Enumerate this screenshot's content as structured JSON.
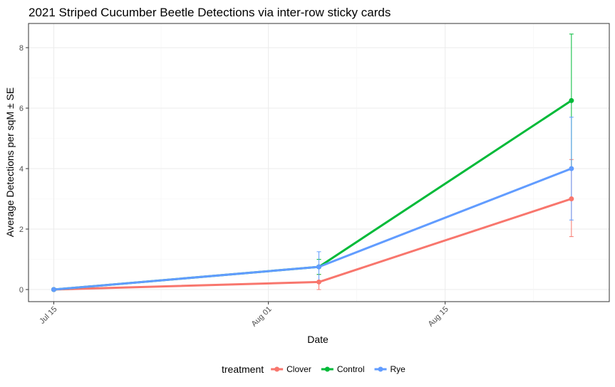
{
  "chart_data": {
    "type": "line",
    "title": "2021 Striped Cucumber Beetle Detections via inter-row sticky cards",
    "xlabel": "Date",
    "ylabel": "Average Detections per sqM ± SE",
    "x_ticks": [
      "Jul 15",
      "Aug 01",
      "Aug 15"
    ],
    "x_tick_dates": [
      "2021-07-15",
      "2021-08-01",
      "2021-08-15"
    ],
    "y_ticks": [
      0,
      2,
      4,
      6,
      8
    ],
    "xlim": [
      "2021-07-13",
      "2021-08-28"
    ],
    "ylim": [
      -0.4,
      8.8
    ],
    "grid": true,
    "legend": {
      "title": "treatment",
      "position": "bottom"
    },
    "x": [
      "2021-07-15",
      "2021-08-05",
      "2021-08-25"
    ],
    "series": [
      {
        "name": "Clover",
        "color": "#F8766D",
        "values": [
          0,
          0.25,
          3.0
        ],
        "err_low": [
          0,
          0.0,
          1.75
        ],
        "err_high": [
          0,
          0.5,
          4.3
        ]
      },
      {
        "name": "Control",
        "color": "#00BA38",
        "values": [
          0,
          0.75,
          6.25
        ],
        "err_low": [
          0,
          0.5,
          4.0
        ],
        "err_high": [
          0,
          1.0,
          8.45
        ]
      },
      {
        "name": "Rye",
        "color": "#619CFF",
        "values": [
          0,
          0.75,
          4.0
        ],
        "err_low": [
          0,
          0.25,
          2.3
        ],
        "err_high": [
          0,
          1.25,
          5.7
        ]
      }
    ]
  }
}
